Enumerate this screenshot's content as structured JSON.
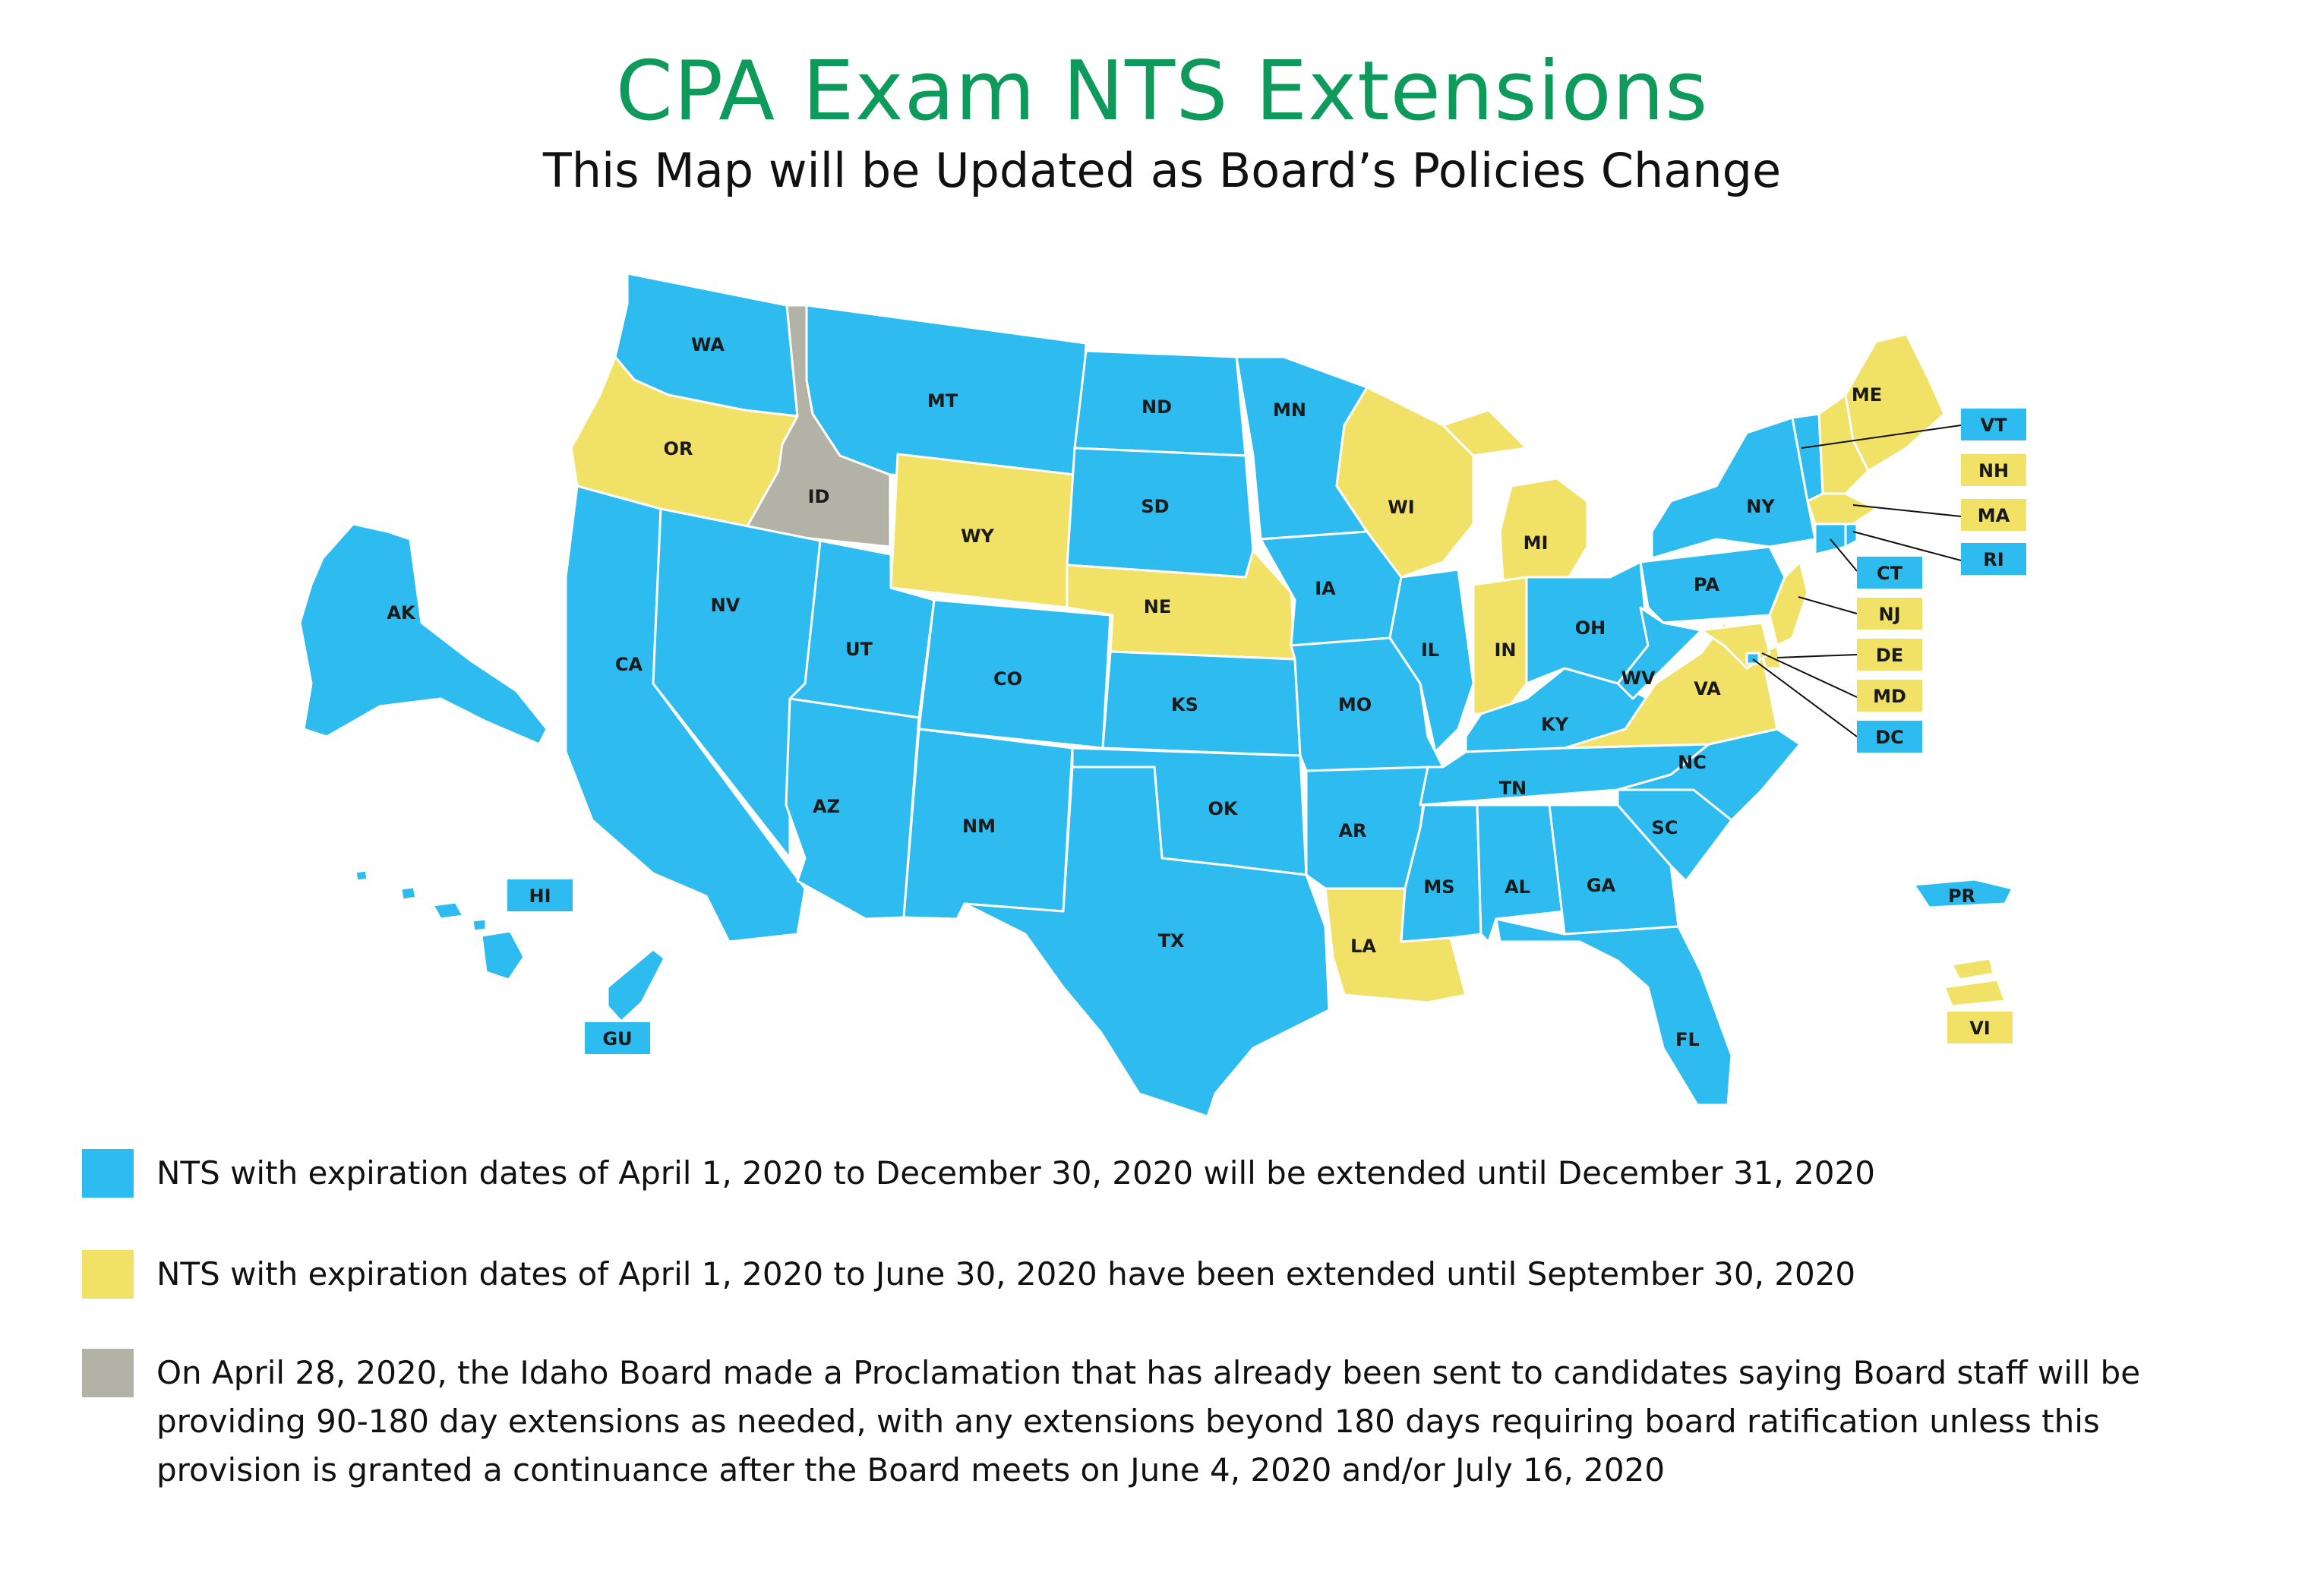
{
  "title": "CPA Exam NTS Extensions",
  "subtitle": "This Map will be Updated as Board’s Policies Change",
  "colors": {
    "title": "#0e9a5a",
    "blue": "#2ebbef",
    "yellow": "#f1e166",
    "gray": "#b3b2a6",
    "line": "#111111"
  },
  "states": [
    {
      "code": "WA",
      "status": "blue"
    },
    {
      "code": "OR",
      "status": "yellow"
    },
    {
      "code": "CA",
      "status": "blue"
    },
    {
      "code": "ID",
      "status": "gray"
    },
    {
      "code": "NV",
      "status": "blue"
    },
    {
      "code": "MT",
      "status": "blue"
    },
    {
      "code": "WY",
      "status": "yellow"
    },
    {
      "code": "UT",
      "status": "blue"
    },
    {
      "code": "CO",
      "status": "blue"
    },
    {
      "code": "AZ",
      "status": "blue"
    },
    {
      "code": "NM",
      "status": "blue"
    },
    {
      "code": "ND",
      "status": "blue"
    },
    {
      "code": "SD",
      "status": "blue"
    },
    {
      "code": "NE",
      "status": "yellow"
    },
    {
      "code": "KS",
      "status": "blue"
    },
    {
      "code": "OK",
      "status": "blue"
    },
    {
      "code": "TX",
      "status": "blue"
    },
    {
      "code": "MN",
      "status": "blue"
    },
    {
      "code": "IA",
      "status": "blue"
    },
    {
      "code": "MO",
      "status": "blue"
    },
    {
      "code": "AR",
      "status": "blue"
    },
    {
      "code": "LA",
      "status": "yellow"
    },
    {
      "code": "WI",
      "status": "yellow"
    },
    {
      "code": "IL",
      "status": "blue"
    },
    {
      "code": "MI",
      "status": "yellow"
    },
    {
      "code": "IN",
      "status": "yellow"
    },
    {
      "code": "OH",
      "status": "blue"
    },
    {
      "code": "KY",
      "status": "blue"
    },
    {
      "code": "TN",
      "status": "blue"
    },
    {
      "code": "MS",
      "status": "blue"
    },
    {
      "code": "AL",
      "status": "blue"
    },
    {
      "code": "GA",
      "status": "blue"
    },
    {
      "code": "FL",
      "status": "blue"
    },
    {
      "code": "SC",
      "status": "blue"
    },
    {
      "code": "NC",
      "status": "blue"
    },
    {
      "code": "VA",
      "status": "yellow"
    },
    {
      "code": "WV",
      "status": "blue"
    },
    {
      "code": "PA",
      "status": "blue"
    },
    {
      "code": "NY",
      "status": "blue"
    },
    {
      "code": "ME",
      "status": "yellow"
    },
    {
      "code": "AK",
      "status": "blue"
    }
  ],
  "callouts": [
    {
      "code": "VT",
      "status": "blue"
    },
    {
      "code": "NH",
      "status": "yellow"
    },
    {
      "code": "MA",
      "status": "yellow"
    },
    {
      "code": "RI",
      "status": "blue"
    },
    {
      "code": "CT",
      "status": "blue"
    },
    {
      "code": "NJ",
      "status": "yellow"
    },
    {
      "code": "DE",
      "status": "yellow"
    },
    {
      "code": "MD",
      "status": "yellow"
    },
    {
      "code": "DC",
      "status": "blue"
    },
    {
      "code": "HI",
      "status": "blue"
    },
    {
      "code": "GU",
      "status": "blue"
    },
    {
      "code": "PR",
      "status": "blue"
    },
    {
      "code": "VI",
      "status": "yellow"
    }
  ],
  "legend": [
    {
      "status": "blue",
      "text": "NTS with expiration dates of April 1, 2020 to December 30, 2020 will be extended until December 31, 2020"
    },
    {
      "status": "yellow",
      "text": "NTS with expiration dates of April 1, 2020 to June 30, 2020 have been extended until September 30, 2020"
    },
    {
      "status": "gray",
      "text": "On April 28, 2020, the Idaho Board made a Proclamation that has already been sent to candidates saying Board staff will be providing 90-180 day extensions as needed, with any extensions beyond 180 days requiring board ratification unless this provision is granted a continuance after the Board meets on June 4, 2020 and/or July 16, 2020"
    }
  ]
}
